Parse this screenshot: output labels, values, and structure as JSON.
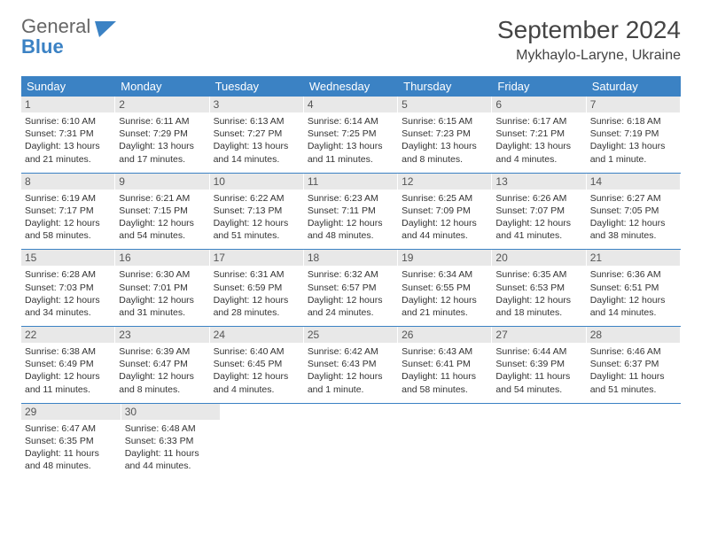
{
  "logo": {
    "general": "General",
    "blue": "Blue"
  },
  "title": "September 2024",
  "location": "Mykhaylo-Laryne, Ukraine",
  "colors": {
    "header_bg": "#3b82c4",
    "header_text": "#ffffff",
    "daynum_bg": "#e8e8e8",
    "text": "#333333",
    "border": "#3b82c4"
  },
  "fonts": {
    "title_size": 28,
    "location_size": 16,
    "weekday_size": 13,
    "daynum_size": 12,
    "info_size": 10.5
  },
  "weekdays": [
    "Sunday",
    "Monday",
    "Tuesday",
    "Wednesday",
    "Thursday",
    "Friday",
    "Saturday"
  ],
  "weeks": [
    [
      {
        "n": "1",
        "sr": "6:10 AM",
        "ss": "7:31 PM",
        "dl": "13 hours and 21 minutes."
      },
      {
        "n": "2",
        "sr": "6:11 AM",
        "ss": "7:29 PM",
        "dl": "13 hours and 17 minutes."
      },
      {
        "n": "3",
        "sr": "6:13 AM",
        "ss": "7:27 PM",
        "dl": "13 hours and 14 minutes."
      },
      {
        "n": "4",
        "sr": "6:14 AM",
        "ss": "7:25 PM",
        "dl": "13 hours and 11 minutes."
      },
      {
        "n": "5",
        "sr": "6:15 AM",
        "ss": "7:23 PM",
        "dl": "13 hours and 8 minutes."
      },
      {
        "n": "6",
        "sr": "6:17 AM",
        "ss": "7:21 PM",
        "dl": "13 hours and 4 minutes."
      },
      {
        "n": "7",
        "sr": "6:18 AM",
        "ss": "7:19 PM",
        "dl": "13 hours and 1 minute."
      }
    ],
    [
      {
        "n": "8",
        "sr": "6:19 AM",
        "ss": "7:17 PM",
        "dl": "12 hours and 58 minutes."
      },
      {
        "n": "9",
        "sr": "6:21 AM",
        "ss": "7:15 PM",
        "dl": "12 hours and 54 minutes."
      },
      {
        "n": "10",
        "sr": "6:22 AM",
        "ss": "7:13 PM",
        "dl": "12 hours and 51 minutes."
      },
      {
        "n": "11",
        "sr": "6:23 AM",
        "ss": "7:11 PM",
        "dl": "12 hours and 48 minutes."
      },
      {
        "n": "12",
        "sr": "6:25 AM",
        "ss": "7:09 PM",
        "dl": "12 hours and 44 minutes."
      },
      {
        "n": "13",
        "sr": "6:26 AM",
        "ss": "7:07 PM",
        "dl": "12 hours and 41 minutes."
      },
      {
        "n": "14",
        "sr": "6:27 AM",
        "ss": "7:05 PM",
        "dl": "12 hours and 38 minutes."
      }
    ],
    [
      {
        "n": "15",
        "sr": "6:28 AM",
        "ss": "7:03 PM",
        "dl": "12 hours and 34 minutes."
      },
      {
        "n": "16",
        "sr": "6:30 AM",
        "ss": "7:01 PM",
        "dl": "12 hours and 31 minutes."
      },
      {
        "n": "17",
        "sr": "6:31 AM",
        "ss": "6:59 PM",
        "dl": "12 hours and 28 minutes."
      },
      {
        "n": "18",
        "sr": "6:32 AM",
        "ss": "6:57 PM",
        "dl": "12 hours and 24 minutes."
      },
      {
        "n": "19",
        "sr": "6:34 AM",
        "ss": "6:55 PM",
        "dl": "12 hours and 21 minutes."
      },
      {
        "n": "20",
        "sr": "6:35 AM",
        "ss": "6:53 PM",
        "dl": "12 hours and 18 minutes."
      },
      {
        "n": "21",
        "sr": "6:36 AM",
        "ss": "6:51 PM",
        "dl": "12 hours and 14 minutes."
      }
    ],
    [
      {
        "n": "22",
        "sr": "6:38 AM",
        "ss": "6:49 PM",
        "dl": "12 hours and 11 minutes."
      },
      {
        "n": "23",
        "sr": "6:39 AM",
        "ss": "6:47 PM",
        "dl": "12 hours and 8 minutes."
      },
      {
        "n": "24",
        "sr": "6:40 AM",
        "ss": "6:45 PM",
        "dl": "12 hours and 4 minutes."
      },
      {
        "n": "25",
        "sr": "6:42 AM",
        "ss": "6:43 PM",
        "dl": "12 hours and 1 minute."
      },
      {
        "n": "26",
        "sr": "6:43 AM",
        "ss": "6:41 PM",
        "dl": "11 hours and 58 minutes."
      },
      {
        "n": "27",
        "sr": "6:44 AM",
        "ss": "6:39 PM",
        "dl": "11 hours and 54 minutes."
      },
      {
        "n": "28",
        "sr": "6:46 AM",
        "ss": "6:37 PM",
        "dl": "11 hours and 51 minutes."
      }
    ],
    [
      {
        "n": "29",
        "sr": "6:47 AM",
        "ss": "6:35 PM",
        "dl": "11 hours and 48 minutes."
      },
      {
        "n": "30",
        "sr": "6:48 AM",
        "ss": "6:33 PM",
        "dl": "11 hours and 44 minutes."
      },
      null,
      null,
      null,
      null,
      null
    ]
  ],
  "labels": {
    "sunrise": "Sunrise:",
    "sunset": "Sunset:",
    "daylight": "Daylight:"
  }
}
